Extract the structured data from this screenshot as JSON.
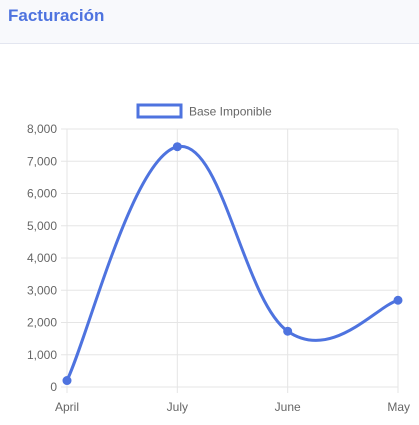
{
  "header": {
    "title": "Facturación"
  },
  "colors": {
    "accent": "#4e73df",
    "grid": "#e5e5e5",
    "axis_text": "#666666"
  },
  "chart_data": {
    "type": "line",
    "title": "",
    "xlabel": "",
    "ylabel": "",
    "categories": [
      "April",
      "July",
      "June",
      "May"
    ],
    "series": [
      {
        "name": "Base Imponible",
        "values": [
          200,
          7450,
          1730,
          2690
        ],
        "color": "#4e73df"
      }
    ],
    "ylim": [
      0,
      8000
    ],
    "yticks": [
      "0",
      "1,000",
      "2,000",
      "3,000",
      "4,000",
      "5,000",
      "6,000",
      "7,000",
      "8,000"
    ],
    "grid": true,
    "legend_position": "top-center",
    "curve": "smooth"
  }
}
